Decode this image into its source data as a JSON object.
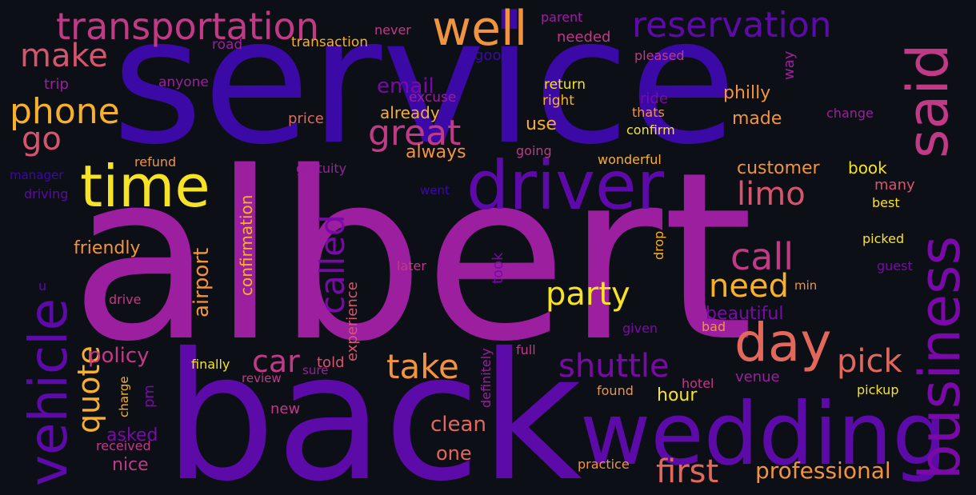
{
  "palette": {
    "background": "#0d0f17",
    "magenta": "#9c1fa0",
    "indigo": "#3b0aa6",
    "violet": "#5c0aa8",
    "purple": "#7a0aa8",
    "pink": "#c03a85",
    "rose": "#d6556d",
    "salmon": "#e3685c",
    "orange": "#f0943f",
    "amber": "#f7b02c",
    "yellow": "#f7e325"
  },
  "words": [
    {
      "text": "albert"
    },
    {
      "text": "service"
    },
    {
      "text": "back"
    },
    {
      "text": "wedding"
    },
    {
      "text": "business"
    },
    {
      "text": "said"
    },
    {
      "text": "vehicle"
    },
    {
      "text": "driver"
    },
    {
      "text": "time"
    },
    {
      "text": "day"
    },
    {
      "text": "transportation"
    },
    {
      "text": "well"
    },
    {
      "text": "reservation"
    },
    {
      "text": "make"
    },
    {
      "text": "phone"
    },
    {
      "text": "go"
    },
    {
      "text": "great"
    },
    {
      "text": "email"
    },
    {
      "text": "called"
    },
    {
      "text": "call"
    },
    {
      "text": "need"
    },
    {
      "text": "party"
    },
    {
      "text": "limo"
    },
    {
      "text": "pick"
    },
    {
      "text": "car"
    },
    {
      "text": "take"
    },
    {
      "text": "shuttle"
    },
    {
      "text": "quote"
    },
    {
      "text": "first"
    },
    {
      "text": "professional"
    },
    {
      "text": "clean"
    },
    {
      "text": "one"
    },
    {
      "text": "hour"
    },
    {
      "text": "policy"
    },
    {
      "text": "asked"
    },
    {
      "text": "nice"
    },
    {
      "text": "friendly"
    },
    {
      "text": "airport"
    },
    {
      "text": "confirmation"
    },
    {
      "text": "experience"
    },
    {
      "text": "customer"
    },
    {
      "text": "book"
    },
    {
      "text": "made"
    },
    {
      "text": "philly"
    },
    {
      "text": "beautiful"
    },
    {
      "text": "use"
    },
    {
      "text": "always"
    },
    {
      "text": "already"
    },
    {
      "text": "excuse"
    },
    {
      "text": "trip"
    },
    {
      "text": "anyone"
    },
    {
      "text": "road"
    },
    {
      "text": "transaction"
    },
    {
      "text": "never"
    },
    {
      "text": "parent"
    },
    {
      "text": "needed"
    },
    {
      "text": "good"
    },
    {
      "text": "pleased"
    },
    {
      "text": "way"
    },
    {
      "text": "return"
    },
    {
      "text": "right"
    },
    {
      "text": "ride"
    },
    {
      "text": "thats"
    },
    {
      "text": "change"
    },
    {
      "text": "confirm"
    },
    {
      "text": "price"
    },
    {
      "text": "refund"
    },
    {
      "text": "manager"
    },
    {
      "text": "driving"
    },
    {
      "text": "gratuity"
    },
    {
      "text": "going"
    },
    {
      "text": "wonderful"
    },
    {
      "text": "went"
    },
    {
      "text": "many"
    },
    {
      "text": "best"
    },
    {
      "text": "picked"
    },
    {
      "text": "guest"
    },
    {
      "text": "drop"
    },
    {
      "text": "min"
    },
    {
      "text": "later"
    },
    {
      "text": "took"
    },
    {
      "text": "u"
    },
    {
      "text": "drive"
    },
    {
      "text": "given"
    },
    {
      "text": "bad"
    },
    {
      "text": "definitely"
    },
    {
      "text": "full"
    },
    {
      "text": "told"
    },
    {
      "text": "finally"
    },
    {
      "text": "sure"
    },
    {
      "text": "review"
    },
    {
      "text": "charge"
    },
    {
      "text": "pm"
    },
    {
      "text": "received"
    },
    {
      "text": "new"
    },
    {
      "text": "venue"
    },
    {
      "text": "hotel"
    },
    {
      "text": "found"
    },
    {
      "text": "pickup"
    },
    {
      "text": "practice"
    }
  ]
}
